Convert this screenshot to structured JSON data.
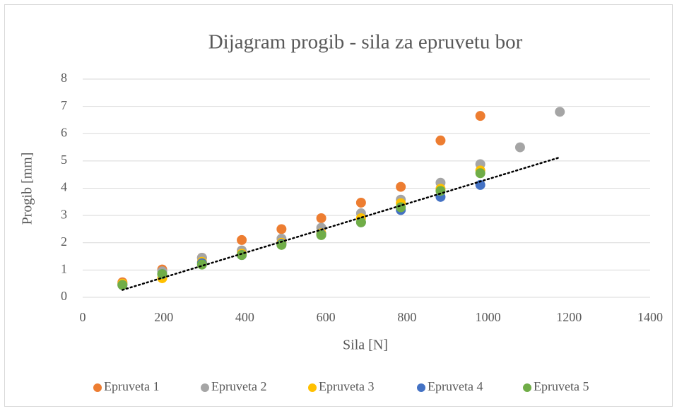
{
  "chart_data": {
    "type": "scatter",
    "title": "Dijagram progib - sila za epruvetu bor",
    "xlabel": "Sila [N]",
    "ylabel": "Progib [mm]",
    "xlim": [
      0,
      1400
    ],
    "xticks": [
      0,
      200,
      400,
      600,
      800,
      1000,
      1200,
      1400
    ],
    "ylim": [
      0,
      8
    ],
    "yticks": [
      0,
      1,
      2,
      3,
      4,
      5,
      6,
      7,
      8
    ],
    "grid": true,
    "legend": "bottom",
    "series": [
      {
        "name": "Epruveta 1",
        "color": "#ed7d31",
        "x": [
          98.1,
          196.2,
          294.3,
          392.4,
          490.5,
          588.6,
          686.7,
          784.8,
          882.9,
          981
        ],
        "values": [
          0.55,
          1.02,
          1.45,
          2.1,
          2.5,
          2.9,
          3.47,
          4.05,
          5.75,
          6.65
        ]
      },
      {
        "name": "Epruveta 2",
        "color": "#a5a5a5",
        "x": [
          98.1,
          196.2,
          294.3,
          392.4,
          490.5,
          588.6,
          686.7,
          784.8,
          882.9,
          981,
          1079.1,
          1177.2
        ],
        "values": [
          0.5,
          0.95,
          1.45,
          1.72,
          2.15,
          2.55,
          3.08,
          3.58,
          4.2,
          4.88,
          5.5,
          6.8
        ]
      },
      {
        "name": "Epruveta 3",
        "color": "#ffc000",
        "x": [
          98.1,
          196.2,
          294.3,
          392.4,
          490.5,
          588.6,
          686.7,
          784.8,
          882.9,
          981
        ],
        "values": [
          0.5,
          0.7,
          1.3,
          1.6,
          2.0,
          2.35,
          2.9,
          3.45,
          3.98,
          4.65
        ]
      },
      {
        "name": "Epruveta 4",
        "color": "#4472c4",
        "x": [
          98.1,
          196.2,
          294.3,
          392.4,
          490.5,
          588.6,
          686.7,
          784.8,
          882.9,
          981
        ],
        "values": [
          0.45,
          0.85,
          1.25,
          1.55,
          1.95,
          2.3,
          2.75,
          3.2,
          3.68,
          4.12
        ]
      },
      {
        "name": "Epruveta 5",
        "color": "#70ad47",
        "x": [
          98.1,
          196.2,
          294.3,
          392.4,
          490.5,
          588.6,
          686.7,
          784.8,
          882.9,
          981
        ],
        "values": [
          0.45,
          0.85,
          1.2,
          1.55,
          1.92,
          2.28,
          2.75,
          3.3,
          3.9,
          4.55
        ]
      }
    ],
    "trendline": {
      "color": "#000000",
      "x": [
        98.1,
        1177.2
      ],
      "values": [
        0.27,
        5.13
      ]
    }
  }
}
